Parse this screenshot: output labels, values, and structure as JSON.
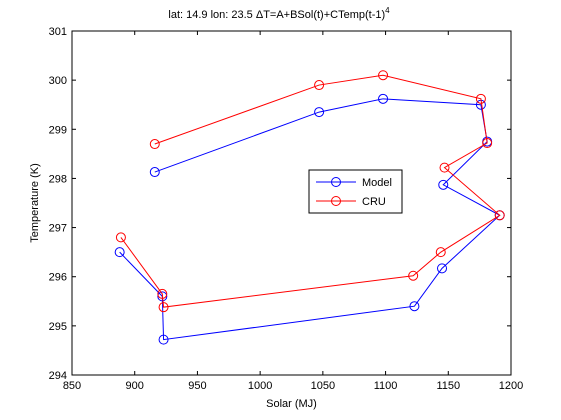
{
  "chart_data": {
    "type": "line",
    "title": "lat: 14.9 lon: 23.5  ΔT=A+BSol(t)+CTemp(t-1)",
    "title_superscript": "4",
    "xlabel": "Solar (MJ)",
    "ylabel": "Temperature (K)",
    "xlim": [
      850,
      1200
    ],
    "ylim": [
      294,
      301
    ],
    "xticks": [
      850,
      900,
      950,
      1000,
      1050,
      1100,
      1150,
      1200
    ],
    "yticks": [
      294,
      295,
      296,
      297,
      298,
      299,
      300,
      301
    ],
    "grid": false,
    "legend_position": "center-right",
    "series": [
      {
        "name": "Model",
        "color": "#0000ff",
        "marker": "circle",
        "points": [
          [
            888,
            296.5
          ],
          [
            922,
            295.6
          ],
          [
            923,
            294.72
          ],
          [
            1123,
            295.4
          ],
          [
            1145,
            296.17
          ],
          [
            1191,
            297.25
          ],
          [
            1146,
            297.87
          ],
          [
            1181,
            298.75
          ],
          [
            1176,
            299.5
          ],
          [
            1098,
            299.62
          ],
          [
            1047,
            299.35
          ],
          [
            916,
            298.13
          ]
        ]
      },
      {
        "name": "CRU",
        "color": "#ff0000",
        "marker": "circle",
        "points": [
          [
            889,
            296.8
          ],
          [
            922,
            295.65
          ],
          [
            923,
            295.38
          ],
          [
            1122,
            296.02
          ],
          [
            1144,
            296.5
          ],
          [
            1191,
            297.25
          ],
          [
            1147,
            298.22
          ],
          [
            1181,
            298.72
          ],
          [
            1176,
            299.62
          ],
          [
            1098,
            300.1
          ],
          [
            1047,
            299.9
          ],
          [
            916,
            298.7
          ]
        ]
      }
    ]
  }
}
